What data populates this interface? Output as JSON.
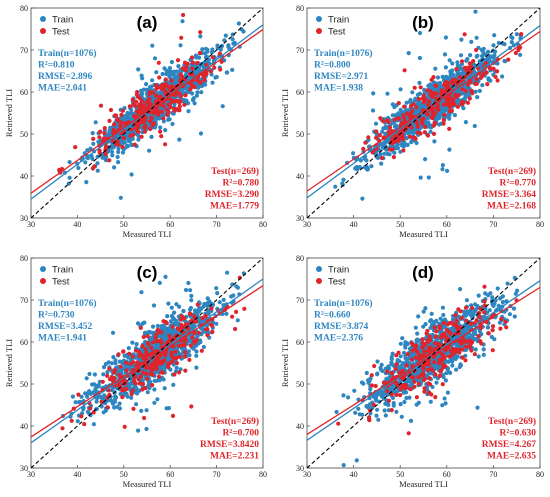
{
  "figure": {
    "colors": {
      "train": "#2E86C1",
      "test": "#E0242B",
      "identity": "#000000"
    },
    "legend_labels": [
      "Train",
      "Test"
    ],
    "xlabel": "Measured TLI",
    "ylabel": "Retrieved TLI"
  },
  "chart_data": [
    {
      "type": "scatter",
      "panel": "(a)",
      "xlim": [
        30,
        80
      ],
      "ylim": [
        30,
        80
      ],
      "xticks": [
        "30",
        "40",
        "50",
        "60",
        "70",
        "80"
      ],
      "yticks": [
        "30",
        "40",
        "50",
        "60",
        "70",
        "80"
      ],
      "xlabel": "Measured TLI",
      "ylabel": "Retrieved TLI",
      "legend": [
        "Train",
        "Test"
      ],
      "legend_position": "top-left",
      "train_stats": [
        "Train(n=1076)",
        "R²=0.810",
        "RMSE=2.896",
        "MAE=2.041"
      ],
      "test_stats": [
        "Test(n=269)",
        "R²=0.780",
        "RMSE=3.290",
        "MAE=1.779"
      ],
      "series": [
        {
          "name": "Train",
          "n": 1076,
          "r2": 0.81,
          "rmse": 2.896,
          "mae": 2.041,
          "fit": {
            "slope": 0.83,
            "intercept": 9.6
          }
        },
        {
          "name": "Test",
          "n": 269,
          "r2": 0.78,
          "rmse": 3.29,
          "mae": 1.779,
          "fit": {
            "slope": 0.78,
            "intercept": 12.5
          }
        }
      ]
    },
    {
      "type": "scatter",
      "panel": "(b)",
      "xlim": [
        30,
        80
      ],
      "ylim": [
        30,
        80
      ],
      "xticks": [
        "30",
        "40",
        "50",
        "60",
        "70",
        "80"
      ],
      "yticks": [
        "30",
        "40",
        "50",
        "60",
        "70",
        "80"
      ],
      "xlabel": "Measured TLI",
      "ylabel": "Retrieved TLI",
      "legend": [
        "Train",
        "Test"
      ],
      "legend_position": "top-left",
      "train_stats": [
        "Train(n=1076)",
        "R²=0.800",
        "RMSE=2.971",
        "MAE=1.938"
      ],
      "test_stats": [
        "Test(n=269)",
        "R²=0.770",
        "RMSE=3.364",
        "MAE=2.168"
      ],
      "series": [
        {
          "name": "Train",
          "n": 1076,
          "r2": 0.8,
          "rmse": 2.971,
          "mae": 1.938,
          "fit": {
            "slope": 0.82,
            "intercept": 10.2
          }
        },
        {
          "name": "Test",
          "n": 269,
          "r2": 0.77,
          "rmse": 3.364,
          "mae": 2.168,
          "fit": {
            "slope": 0.76,
            "intercept": 13.6
          }
        }
      ]
    },
    {
      "type": "scatter",
      "panel": "(c)",
      "xlim": [
        30,
        80
      ],
      "ylim": [
        30,
        80
      ],
      "xticks": [
        "30",
        "40",
        "50",
        "60",
        "70",
        "80"
      ],
      "yticks": [
        "30",
        "40",
        "50",
        "60",
        "70",
        "80"
      ],
      "xlabel": "Measured TLI",
      "ylabel": "Retrieved TLI",
      "legend": [
        "Train",
        "Test"
      ],
      "legend_position": "top-left",
      "train_stats": [
        "Train(n=1076)",
        "R²=0.730",
        "RMSE=3.452",
        "MAE=1.941"
      ],
      "test_stats": [
        "Test(n=269)",
        "R²=0.700",
        "RMSE=3.8420",
        "MAE=2.231"
      ],
      "series": [
        {
          "name": "Train",
          "n": 1076,
          "r2": 0.73,
          "rmse": 3.452,
          "mae": 1.941,
          "fit": {
            "slope": 0.78,
            "intercept": 12.6
          }
        },
        {
          "name": "Test",
          "n": 269,
          "r2": 0.7,
          "rmse": 3.842,
          "mae": 2.231,
          "fit": {
            "slope": 0.72,
            "intercept": 15.8
          }
        }
      ]
    },
    {
      "type": "scatter",
      "panel": "(d)",
      "xlim": [
        30,
        80
      ],
      "ylim": [
        30,
        80
      ],
      "xticks": [
        "30",
        "40",
        "50",
        "60",
        "70",
        "80"
      ],
      "yticks": [
        "30",
        "40",
        "50",
        "60",
        "70",
        "80"
      ],
      "xlabel": "Measured TLI",
      "ylabel": "Retrieved TLI",
      "legend": [
        "Train",
        "Test"
      ],
      "legend_position": "top-left",
      "train_stats": [
        "Train(n=1076)",
        "R²=0.660",
        "RMSE=3.874",
        "MAE=2.376"
      ],
      "test_stats": [
        "Test(n=269)",
        "R²=0.630",
        "RMSE=4.267",
        "MAE=2.635"
      ],
      "series": [
        {
          "name": "Train",
          "n": 1076,
          "r2": 0.66,
          "rmse": 3.874,
          "mae": 2.376,
          "fit": {
            "slope": 0.76,
            "intercept": 13.8
          }
        },
        {
          "name": "Test",
          "n": 269,
          "r2": 0.63,
          "rmse": 4.267,
          "mae": 2.635,
          "fit": {
            "slope": 0.7,
            "intercept": 17.0
          }
        }
      ]
    }
  ]
}
